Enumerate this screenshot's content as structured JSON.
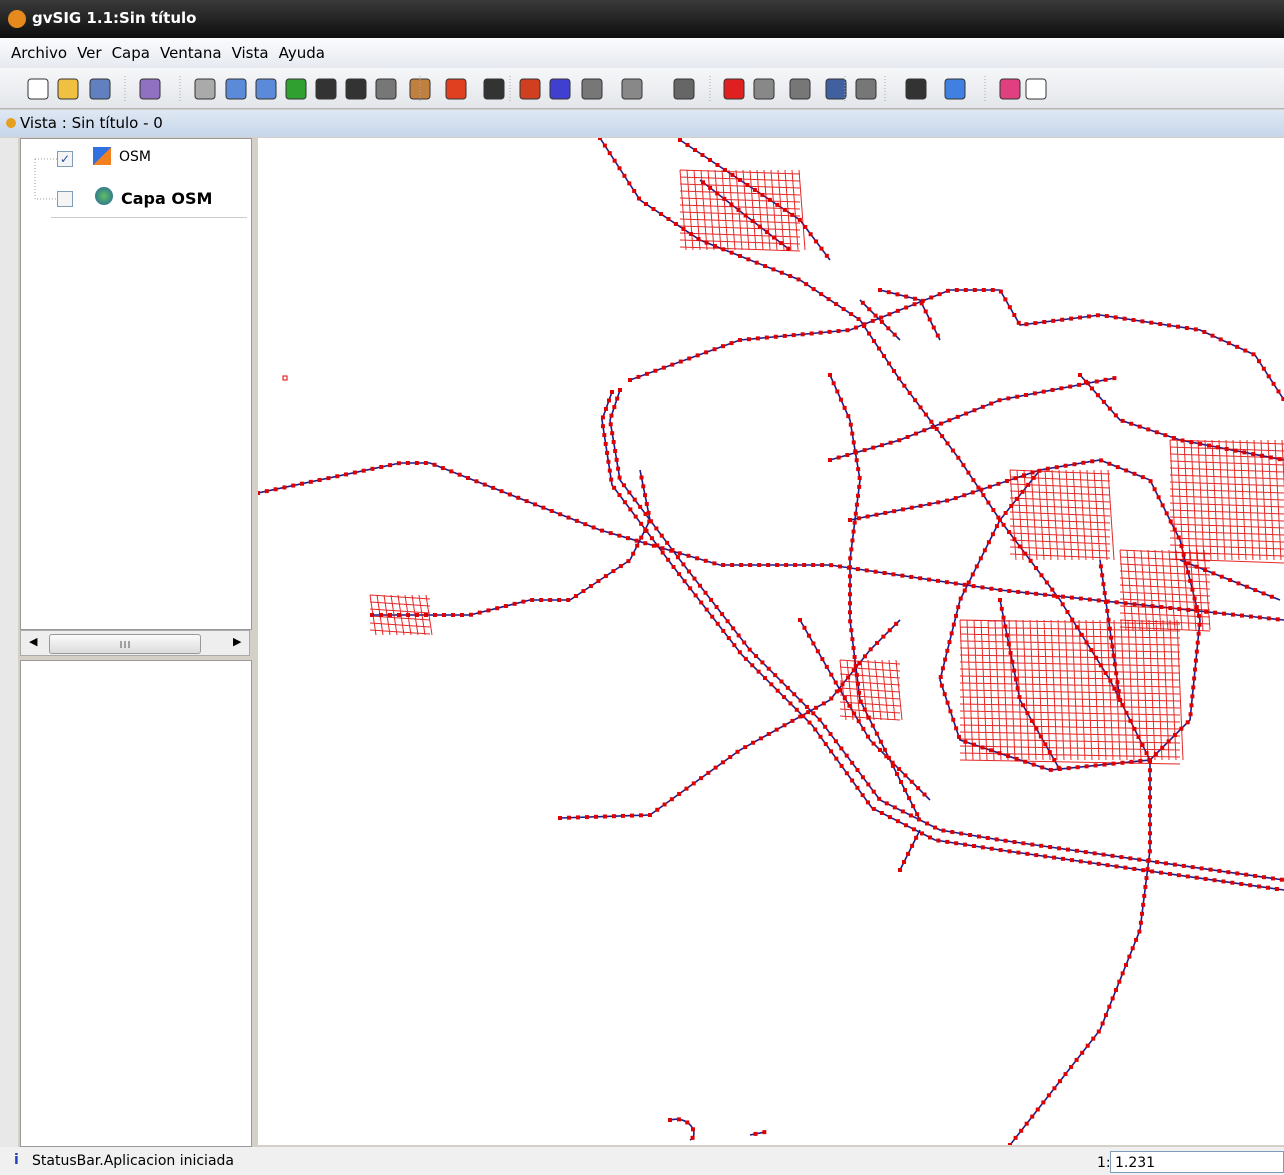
{
  "window": {
    "title": "gvSIG 1.1:Sin título"
  },
  "menu": [
    "Archivo",
    "Ver",
    "Capa",
    "Ventana",
    "Vista",
    "Ayuda"
  ],
  "view": {
    "title": "Vista : Sin título - 0",
    "layers": [
      {
        "name": "OSM",
        "checked": true,
        "bold": false
      },
      {
        "name": "Capa OSM",
        "checked": false,
        "bold": true
      }
    ]
  },
  "status": {
    "message": "StatusBar.Aplicacion iniciada",
    "scale_prefix": "1:",
    "scale": "1.231"
  }
}
